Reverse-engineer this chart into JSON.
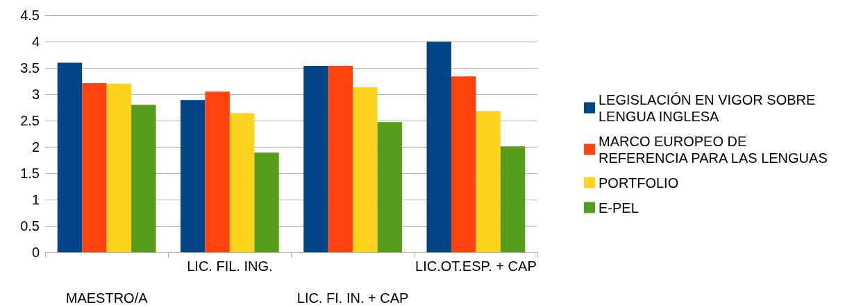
{
  "chart_data": {
    "type": "bar",
    "categories": [
      "MAESTRO/A",
      "LIC. FIL. ING.",
      "LIC. FI. IN. + CAP",
      "LIC.OT.ESP. + CAP"
    ],
    "series": [
      {
        "name": "LEGISLACIÓN EN VIGOR SOBRE LENGUA INGLESA",
        "color": "#004586",
        "values": [
          3.6,
          2.89,
          3.54,
          4.0
        ]
      },
      {
        "name": "MARCO EUROPEO DE REFERENCIA PARA LAS LENGUAS",
        "color": "#ff420e",
        "values": [
          3.21,
          3.05,
          3.54,
          3.34
        ]
      },
      {
        "name": "PORTFOLIO",
        "color": "#ffd320",
        "values": [
          3.2,
          2.64,
          3.13,
          2.68
        ]
      },
      {
        "name": "E-PEL",
        "color": "#579d1c",
        "values": [
          2.8,
          1.89,
          2.47,
          2.01
        ]
      }
    ],
    "ylim": [
      0,
      4.5
    ],
    "yticks": [
      0,
      0.5,
      1,
      1.5,
      2,
      2.5,
      3,
      3.5,
      4,
      4.5
    ],
    "grid": "y",
    "legend": "right"
  }
}
